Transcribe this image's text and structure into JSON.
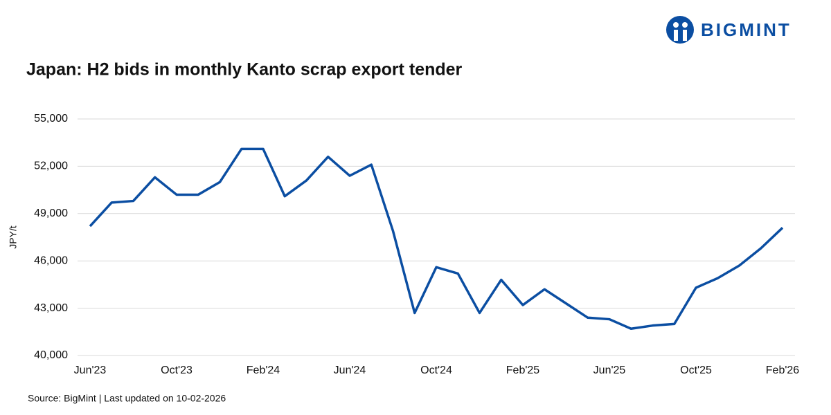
{
  "brand": "BIGMINT",
  "source": "Source: BigMint | Last updated on 10-02-2026",
  "chart_data": {
    "type": "line",
    "title": "Japan: H2 bids in monthly Kanto scrap export tender",
    "y_label": "JPY/t",
    "categories": [
      "Jun'23",
      null,
      null,
      null,
      "Oct'23",
      null,
      null,
      null,
      "Feb'24",
      null,
      null,
      null,
      "Jun'24",
      null,
      null,
      null,
      "Oct'24",
      null,
      null,
      null,
      "Feb'25",
      null,
      null,
      null,
      "Jun'25",
      null,
      null,
      null,
      "Oct'25",
      null,
      null,
      null,
      "Feb'26"
    ],
    "series": [
      {
        "name": "H2 bids",
        "color": "#0b4ea2",
        "values": [
          48200,
          49700,
          49800,
          51300,
          50200,
          50200,
          51000,
          53100,
          53100,
          50100,
          51100,
          52600,
          51400,
          52100,
          47900,
          42700,
          45600,
          45200,
          42700,
          44800,
          43200,
          44200,
          43300,
          42400,
          42300,
          41700,
          41900,
          42000,
          44300,
          44900,
          45700,
          46800,
          48100
        ]
      }
    ],
    "ylim": [
      40000,
      55000
    ],
    "yticks": [
      {
        "value": 40000,
        "label": "40,000"
      },
      {
        "value": 43000,
        "label": "43,000"
      },
      {
        "value": 46000,
        "label": "46,000"
      },
      {
        "value": 49000,
        "label": "49,000"
      },
      {
        "value": 52000,
        "label": "52,000"
      },
      {
        "value": 55000,
        "label": "55,000"
      }
    ],
    "grid": true
  }
}
